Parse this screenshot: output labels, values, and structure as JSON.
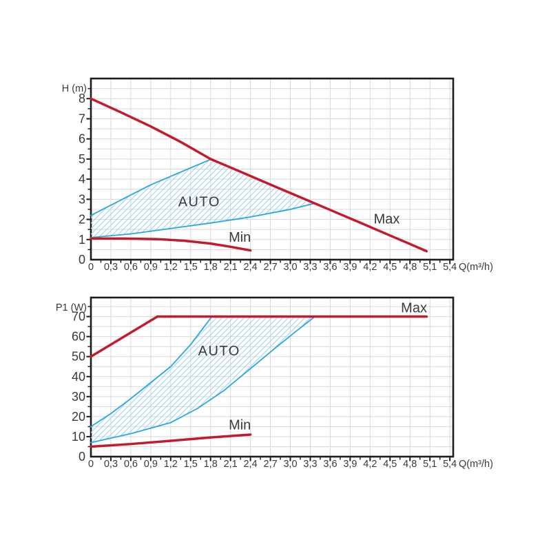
{
  "figure": {
    "description": "Pump performance curves: head and power input versus flow rate",
    "background": "#ffffff"
  },
  "colors": {
    "curve_red": "#c31a2c",
    "auto_blue": "#29a7e0",
    "hatch_blue": "#a9d8ef",
    "grid": "#d8d8d8",
    "axis": "#1c1c1c",
    "text": "#3a3a3a"
  },
  "chart_data": [
    {
      "id": "head-chart",
      "type": "line",
      "title": "",
      "ylabel": "H (m)",
      "xlabel": "Q(m³/h)",
      "xlim": [
        0,
        5.45
      ],
      "ylim": [
        0,
        9.0
      ],
      "grid": {
        "on": true,
        "x_step": 0.3,
        "y_step": 0.5
      },
      "x_tick_values": [
        0,
        0.3,
        0.6,
        0.9,
        1.2,
        1.5,
        1.8,
        2.1,
        2.4,
        2.7,
        3.0,
        3.3,
        3.6,
        3.9,
        4.2,
        4.5,
        4.8,
        5.1,
        5.4
      ],
      "x_tick_labels": [
        "0",
        "0,3",
        "0,6",
        "0,9",
        "1,2",
        "1,5",
        "1,8",
        "2,1",
        "2,4",
        "2,7",
        "3,0",
        "3,3",
        "3,6",
        "3,9",
        "4,2",
        "4,5",
        "4,8",
        "5,1",
        "5,4"
      ],
      "x_minor_step": 0.15,
      "y_tick_values": [
        0,
        1,
        2,
        3,
        4,
        5,
        6,
        7,
        8
      ],
      "y_tick_labels": [
        "0",
        "1",
        "2",
        "3",
        "4",
        "5",
        "6",
        "7",
        "8"
      ],
      "y_minor_step": 0.5,
      "series": [
        {
          "name": "Max",
          "label": {
            "text": "Max",
            "x": 4.45,
            "y": 2.04
          },
          "points": [
            [
              0,
              8.0
            ],
            [
              0.45,
              7.32
            ],
            [
              0.9,
              6.62
            ],
            [
              1.35,
              5.85
            ],
            [
              1.8,
              5.0
            ],
            [
              2.25,
              4.37
            ],
            [
              2.7,
              3.73
            ],
            [
              3.15,
              3.1
            ],
            [
              3.6,
              2.47
            ],
            [
              4.05,
              1.84
            ],
            [
              4.5,
              1.2
            ],
            [
              4.8,
              0.78
            ],
            [
              5.05,
              0.42
            ]
          ]
        },
        {
          "name": "Min",
          "label": {
            "text": "Min",
            "x": 2.24,
            "y": 1.13
          },
          "points": [
            [
              0,
              1.05
            ],
            [
              0.5,
              1.05
            ],
            [
              1.0,
              1.02
            ],
            [
              1.4,
              0.94
            ],
            [
              1.8,
              0.8
            ],
            [
              2.1,
              0.64
            ],
            [
              2.4,
              0.46
            ]
          ]
        }
      ],
      "auto_region": {
        "label": {
          "text": "AUTO",
          "x": 1.63,
          "y": 2.9
        },
        "outline": [
          [
            0,
            1.1
          ],
          [
            0.6,
            1.28
          ],
          [
            1.2,
            1.55
          ],
          [
            1.8,
            1.82
          ],
          [
            2.4,
            2.12
          ],
          [
            3.0,
            2.5
          ],
          [
            3.37,
            2.8
          ],
          [
            3.15,
            3.1
          ],
          [
            2.7,
            3.73
          ],
          [
            2.25,
            4.37
          ],
          [
            1.8,
            5.0
          ],
          [
            0.9,
            3.72
          ],
          [
            0,
            2.2
          ]
        ],
        "boundaries": [
          [
            [
              0,
              2.2
            ],
            [
              0.9,
              3.72
            ],
            [
              1.8,
              4.98
            ]
          ],
          [
            [
              0,
              1.1
            ],
            [
              0.6,
              1.28
            ],
            [
              1.2,
              1.55
            ],
            [
              1.8,
              1.82
            ],
            [
              2.4,
              2.12
            ],
            [
              3.0,
              2.5
            ],
            [
              3.37,
              2.8
            ]
          ]
        ]
      }
    },
    {
      "id": "power-chart",
      "type": "line",
      "title": "",
      "ylabel": "P1 (W)",
      "xlabel": "Q(m³/h)",
      "xlim": [
        0,
        5.45
      ],
      "ylim": [
        0,
        79.5
      ],
      "grid": {
        "on": true,
        "x_step": 0.3,
        "y_step": 5
      },
      "x_tick_values": [
        0,
        0.3,
        0.6,
        0.9,
        1.2,
        1.5,
        1.8,
        2.1,
        2.4,
        2.7,
        3.0,
        3.3,
        3.6,
        3.9,
        4.2,
        4.5,
        4.8,
        5.1,
        5.4
      ],
      "x_tick_labels": [
        "0",
        "0,3",
        "0,6",
        "0,9",
        "1,2",
        "1,5",
        "1,8",
        "2,1",
        "2,4",
        "2,7",
        "3,0",
        "3,3",
        "3,6",
        "3,9",
        "4,2",
        "4,5",
        "4,8",
        "5,1",
        "5,4"
      ],
      "x_minor_step": 0.15,
      "y_tick_values": [
        0,
        10,
        20,
        30,
        40,
        50,
        60,
        70
      ],
      "y_tick_labels": [
        "0",
        "10",
        "20",
        "30",
        "40",
        "50",
        "60",
        "70"
      ],
      "y_minor_step": 5,
      "series": [
        {
          "name": "Max",
          "label": {
            "text": "Max",
            "x": 4.86,
            "y": 74.5
          },
          "points": [
            [
              0,
              50
            ],
            [
              1.0,
              70
            ],
            [
              5.05,
              70
            ]
          ]
        },
        {
          "name": "Min",
          "label": {
            "text": "Min",
            "x": 2.24,
            "y": 16
          },
          "points": [
            [
              0,
              5
            ],
            [
              0.6,
              6.3
            ],
            [
              1.2,
              7.9
            ],
            [
              1.8,
              9.6
            ],
            [
              2.4,
              11
            ]
          ]
        }
      ],
      "auto_region": {
        "label": {
          "text": "AUTO",
          "x": 1.93,
          "y": 53
        },
        "outline": [
          [
            0,
            7
          ],
          [
            0.6,
            11.5
          ],
          [
            1.2,
            17
          ],
          [
            1.6,
            24
          ],
          [
            2.0,
            33
          ],
          [
            2.4,
            44
          ],
          [
            2.8,
            55
          ],
          [
            3.1,
            63
          ],
          [
            3.37,
            70
          ],
          [
            1.82,
            70
          ],
          [
            1.5,
            56
          ],
          [
            1.2,
            45
          ],
          [
            0.9,
            37
          ],
          [
            0.6,
            29
          ],
          [
            0.3,
            21.5
          ],
          [
            0,
            15
          ]
        ],
        "boundaries": [
          [
            [
              0,
              15
            ],
            [
              0.3,
              21.5
            ],
            [
              0.6,
              29
            ],
            [
              0.9,
              37
            ],
            [
              1.2,
              45
            ],
            [
              1.5,
              56
            ],
            [
              1.82,
              70
            ]
          ],
          [
            [
              0,
              7
            ],
            [
              0.6,
              11.5
            ],
            [
              1.2,
              17
            ],
            [
              1.6,
              24
            ],
            [
              2.0,
              33
            ],
            [
              2.4,
              44
            ],
            [
              2.8,
              55
            ],
            [
              3.1,
              63
            ],
            [
              3.37,
              70
            ]
          ]
        ]
      }
    }
  ]
}
